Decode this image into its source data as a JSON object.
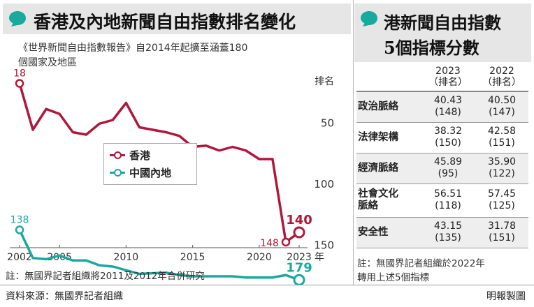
{
  "left": {
    "title": "香港及內地新聞自由指數排名變化",
    "subtitle_line1": "《世界新聞自由指數報告》自2014年起擴至涵蓋180",
    "subtitle_line2": "個國家及地區",
    "note": "註：無國界記者組織將2011及2012年合併研究"
  },
  "right": {
    "title_line1": "港新聞自由指數",
    "title_line2": "5個指標分數",
    "table": {
      "headers": [
        {
          "year": "2023",
          "sub": "（排名）"
        },
        {
          "year": "2022",
          "sub": "（排名）"
        }
      ],
      "rows": [
        {
          "indicator": "政治脈絡",
          "y2023": "40.43",
          "r2023": "(148)",
          "y2022": "40.50",
          "r2022": "(147)"
        },
        {
          "indicator": "法律架構",
          "y2023": "38.32",
          "r2023": "(150)",
          "y2022": "42.58",
          "r2022": "(151)"
        },
        {
          "indicator": "經濟脈絡",
          "y2023": "45.89",
          "r2023": "(95)",
          "y2022": "35.90",
          "r2022": "(122)"
        },
        {
          "indicator_line1": "社會文化",
          "indicator": "脈絡",
          "y2023": "56.51",
          "r2023": "(118)",
          "y2022": "57.45",
          "r2022": "(125)"
        },
        {
          "indicator": "安全性",
          "y2023": "43.15",
          "r2023": "(135)",
          "y2022": "31.78",
          "r2022": "(151)"
        }
      ]
    },
    "note_line1": "註：無國界記者組織於2022年",
    "note_line2": "轉用上述5個指標"
  },
  "footer": {
    "source": "資料來源：無國界記者組織",
    "credit": "明報製圖"
  },
  "colors": {
    "hong_kong": "#b0173a",
    "mainland": "#1aa99f",
    "accent_bubble": "#1aa99f",
    "panel_bg": "#e6e6e6"
  },
  "chart_data": {
    "type": "line",
    "x": [
      2002,
      2003,
      2004,
      2005,
      2006,
      2007,
      2008,
      2009,
      2010,
      2011,
      2013,
      2014,
      2015,
      2016,
      2017,
      2018,
      2019,
      2020,
      2021,
      2022,
      2023
    ],
    "series": [
      {
        "name": "香港",
        "color": "#b0173a",
        "values": [
          18,
          56,
          39,
          43,
          58,
          60,
          51,
          48,
          34,
          54,
          58,
          61,
          70,
          69,
          73,
          70,
          73,
          80,
          80,
          148,
          140
        ]
      },
      {
        "name": "中國內地",
        "color": "#1aa99f",
        "values": [
          138,
          161,
          162,
          159,
          163,
          163,
          167,
          168,
          171,
          174,
          173,
          175,
          176,
          176,
          176,
          176,
          177,
          177,
          177,
          175,
          179
        ]
      }
    ],
    "point_labels": [
      {
        "series": "香港",
        "x": 2002,
        "text": "18"
      },
      {
        "series": "香港",
        "x": 2022,
        "text": "148"
      },
      {
        "series": "香港",
        "x": 2023,
        "text": "140"
      },
      {
        "series": "中國內地",
        "x": 2002,
        "text": "138"
      },
      {
        "series": "中國內地",
        "x": 2023,
        "text": "179"
      }
    ],
    "x_ticks": [
      "2002",
      "2005",
      "2010",
      "2015",
      "2020",
      "2023"
    ],
    "x_unit": "年",
    "y_ticks": [
      "50",
      "100",
      "150"
    ],
    "ylabel": "排名",
    "ylim": [
      0,
      182
    ],
    "y_inverted": true,
    "grid": false,
    "legend": "center-left"
  }
}
